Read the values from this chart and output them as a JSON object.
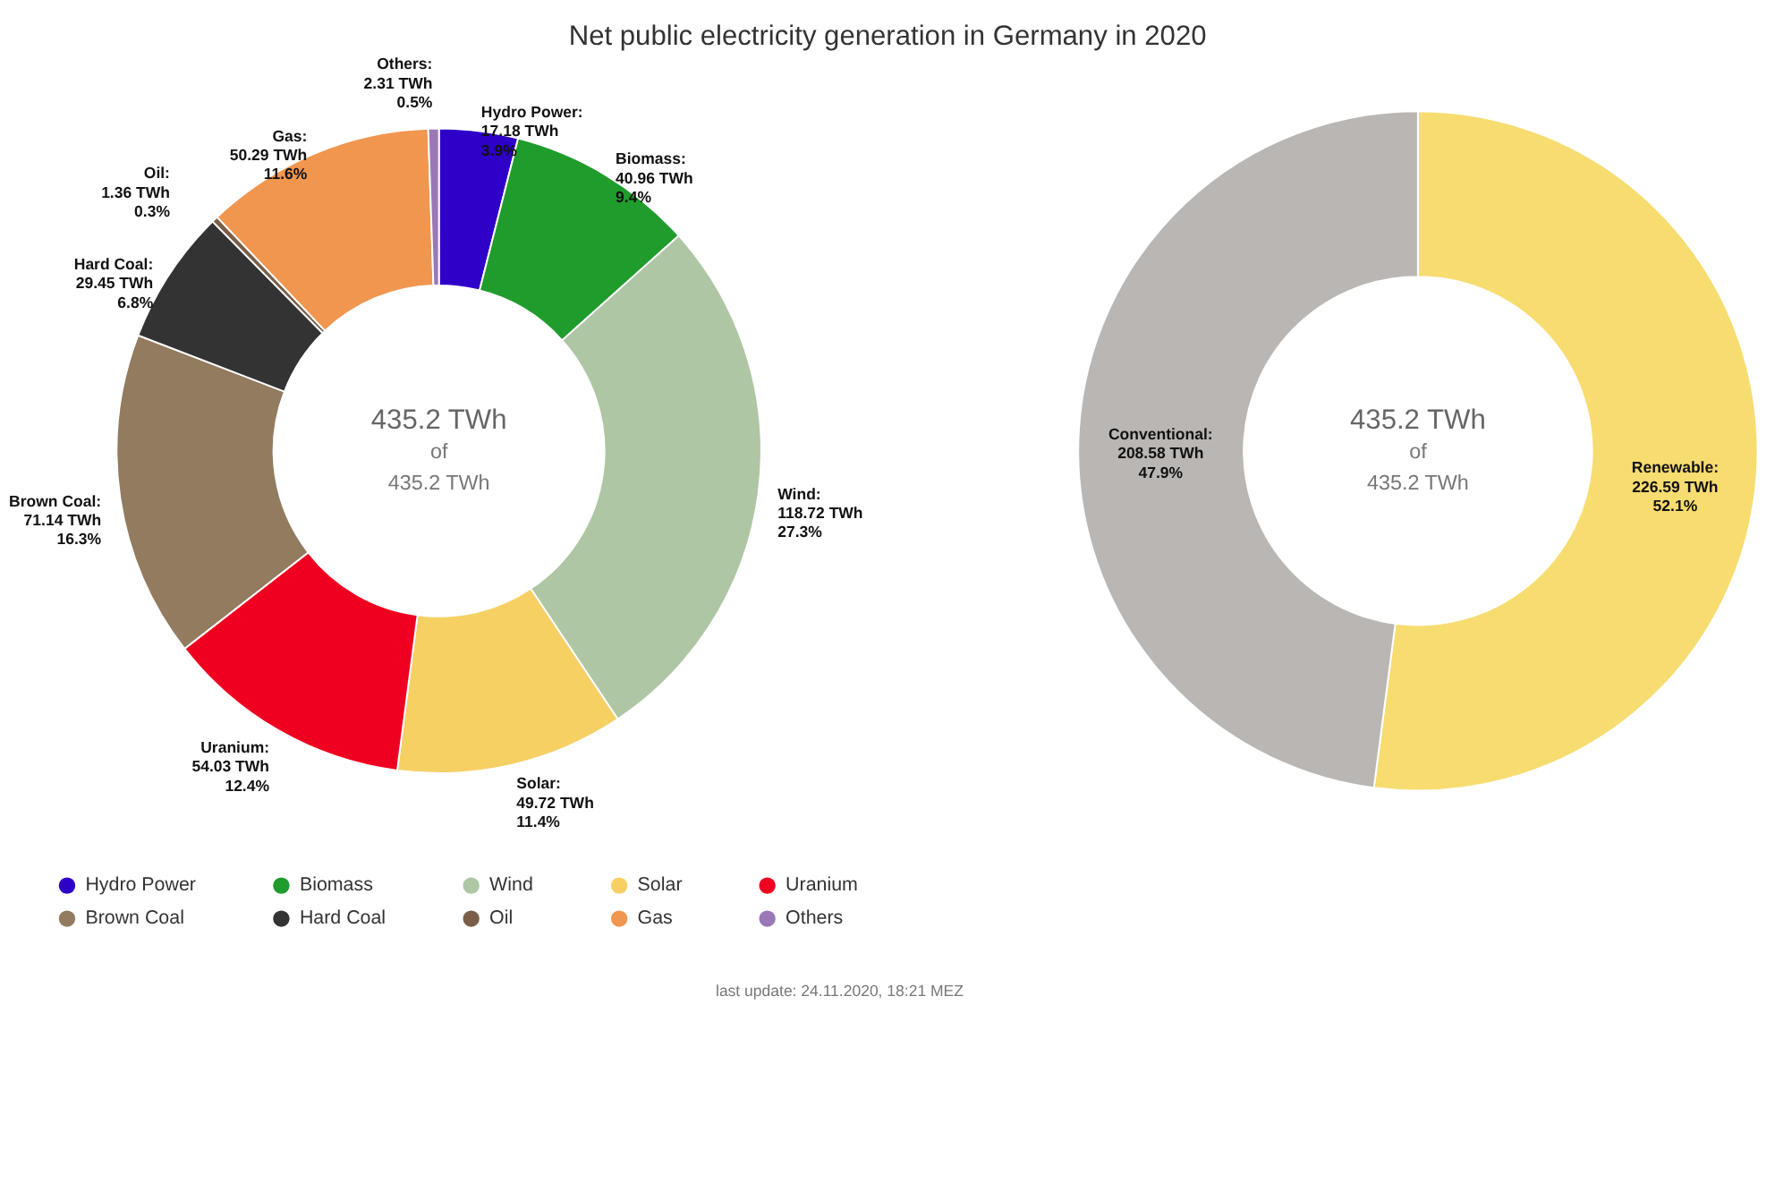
{
  "chart_data": [
    {
      "type": "donut",
      "title": "Net public electricity generation in Germany in 2020",
      "categories": [
        "Hydro Power",
        "Biomass",
        "Wind",
        "Solar",
        "Uranium",
        "Brown Coal",
        "Hard Coal",
        "Oil",
        "Gas",
        "Others"
      ],
      "values": [
        17.18,
        40.96,
        118.72,
        49.72,
        54.03,
        71.14,
        29.45,
        1.36,
        50.29,
        2.31
      ],
      "colors": [
        "#2f00c8",
        "#1f9c2c",
        "#aec6a4",
        "#f7d064",
        "#f00020",
        "#927b5f",
        "#333333",
        "#7a5e47",
        "#f0964f",
        "#9a78b6"
      ],
      "value_labels": [
        "Hydro Power:\n17.18 TWh\n3.9%",
        "Biomass:\n40.96 TWh\n9.4%",
        "Wind:\n118.72 TWh\n27.3%",
        "Solar:\n49.72 TWh\n11.4%",
        "Uranium:\n54.03 TWh\n12.4%",
        "Brown Coal:\n71.14 TWh\n16.3%",
        "Hard Coal:\n29.45 TWh\n6.8%",
        "Oil:\n1.36 TWh\n0.3%",
        "Gas:\n50.29 TWh\n11.6%",
        "Others:\n2.31 TWh\n0.5%"
      ],
      "legend": "bottom",
      "annotations": [
        "435.2 TWh",
        "of",
        "435.2 TWh",
        "last update: 24.11.2020, 18:21 MEZ"
      ]
    },
    {
      "type": "donut",
      "categories": [
        null,
        null
      ],
      "values": [
        226.59,
        208.58
      ],
      "colors": [
        "#f7dc70",
        "#bab6b3"
      ],
      "value_labels": [
        "Renewable:\n226.59 TWh\n52.1%",
        "Conventional:\n208.58 TWh\n47.9%"
      ],
      "annotations": [
        "435.2 TWh",
        "of",
        "435.2 TWh"
      ]
    }
  ]
}
